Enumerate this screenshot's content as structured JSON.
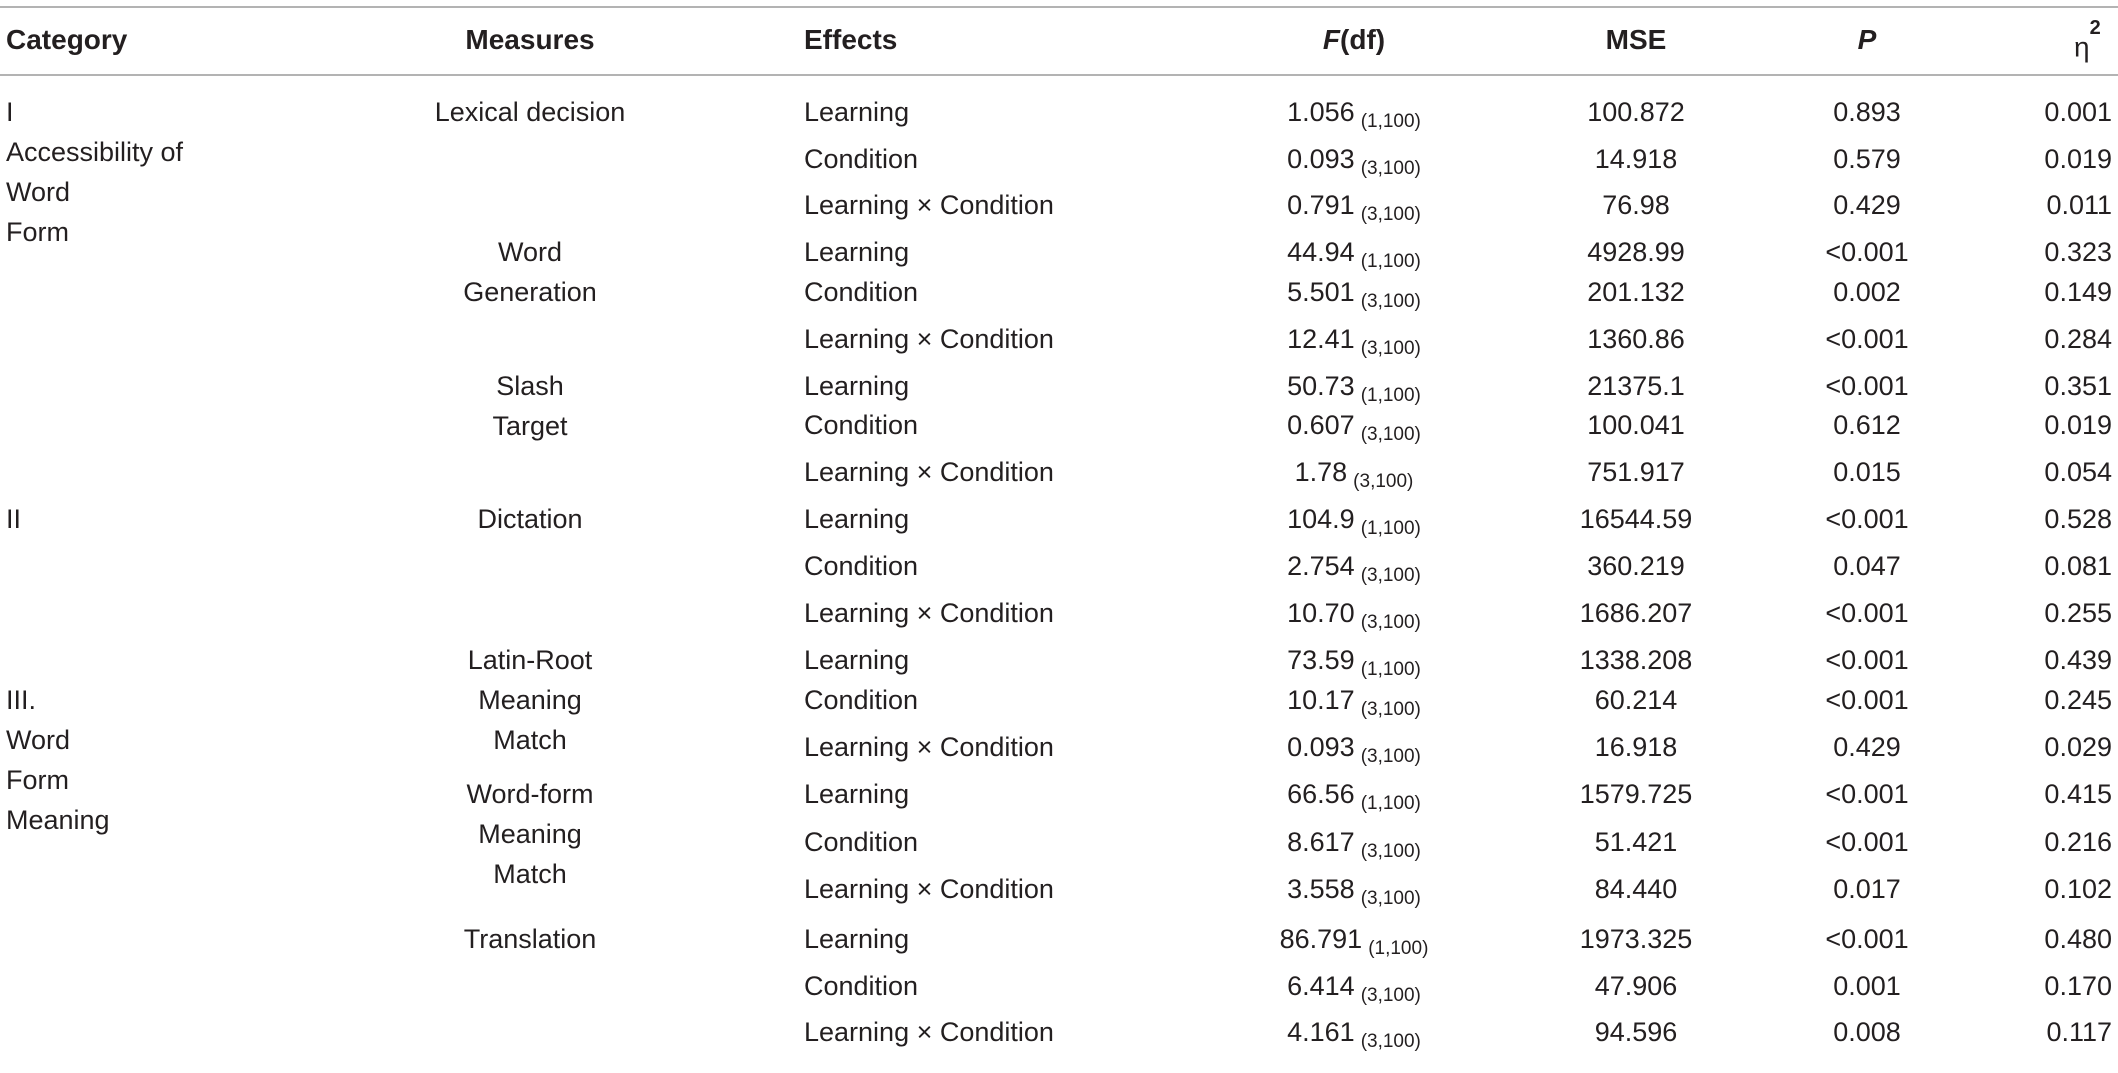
{
  "headers": {
    "category": "Category",
    "measures": "Measures",
    "effects": "Effects",
    "f_italic": "F",
    "f_rest": "(df)",
    "mse": "MSE",
    "p": "P",
    "eta": "η",
    "eta_sup": "2"
  },
  "categories": [
    {
      "lines": [
        "I",
        "Accessibility of",
        "Word",
        "Form"
      ]
    },
    {
      "lines": [
        "II"
      ]
    },
    {
      "lines": [
        "III.",
        "Word",
        "Form",
        "Meaning"
      ]
    }
  ],
  "measures": [
    {
      "lines": [
        "Lexical decision"
      ]
    },
    {
      "lines": [
        "Word",
        "Generation"
      ]
    },
    {
      "lines": [
        "Slash",
        "Target"
      ]
    },
    {
      "lines": [
        "Dictation"
      ]
    },
    {
      "lines": [
        "Latin-Root",
        "Meaning",
        "Match"
      ]
    },
    {
      "lines": [
        "Word-form",
        "Meaning",
        "Match"
      ]
    },
    {
      "lines": [
        "Translation"
      ]
    }
  ],
  "rows": [
    {
      "effect": "Learning",
      "f": "1.056",
      "df": "(1,100)",
      "mse": "100.872",
      "p": "0.893",
      "eta": "0.001"
    },
    {
      "effect": "Condition",
      "f": "0.093",
      "df": "(3,100)",
      "mse": "14.918",
      "p": "0.579",
      "eta": "0.019"
    },
    {
      "effect": "Learning × Condition",
      "f": "0.791",
      "df": "(3,100)",
      "mse": "76.98",
      "p": "0.429",
      "eta": "0.011"
    },
    {
      "effect": "Learning",
      "f": "44.94",
      "df": "(1,100)",
      "mse": "4928.99",
      "p": "<0.001",
      "eta": "0.323"
    },
    {
      "effect": "Condition",
      "f": "5.501",
      "df": "(3,100)",
      "mse": "201.132",
      "p": "0.002",
      "eta": "0.149"
    },
    {
      "effect": "Learning × Condition",
      "f": "12.41",
      "df": "(3,100)",
      "mse": "1360.86",
      "p": "<0.001",
      "eta": "0.284"
    },
    {
      "effect": "Learning",
      "f": "50.73",
      "df": "(1,100)",
      "mse": "21375.1",
      "p": "<0.001",
      "eta": "0.351"
    },
    {
      "effect": "Condition",
      "f": "0.607",
      "df": "(3,100)",
      "mse": "100.041",
      "p": "0.612",
      "eta": "0.019"
    },
    {
      "effect": "Learning × Condition",
      "f": "1.78",
      "df": "(3,100)",
      "mse": "751.917",
      "p": "0.015",
      "eta": "0.054"
    },
    {
      "effect": "Learning",
      "f": "104.9",
      "df": "(1,100)",
      "mse": "16544.59",
      "p": "<0.001",
      "eta": "0.528"
    },
    {
      "effect": "Condition",
      "f": "2.754",
      "df": "(3,100)",
      "mse": "360.219",
      "p": "0.047",
      "eta": "0.081"
    },
    {
      "effect": "Learning × Condition",
      "f": "10.70",
      "df": "(3,100)",
      "mse": "1686.207",
      "p": "<0.001",
      "eta": "0.255"
    },
    {
      "effect": "Learning",
      "f": "73.59",
      "df": "(1,100)",
      "mse": "1338.208",
      "p": "<0.001",
      "eta": "0.439"
    },
    {
      "effect": "Condition",
      "f": "10.17",
      "df": "(3,100)",
      "mse": "60.214",
      "p": "<0.001",
      "eta": "0.245"
    },
    {
      "effect": "Learning × Condition",
      "f": "0.093",
      "df": "(3,100)",
      "mse": "16.918",
      "p": "0.429",
      "eta": "0.029"
    },
    {
      "effect": "Learning",
      "f": "66.56",
      "df": "(1,100)",
      "mse": "1579.725",
      "p": "<0.001",
      "eta": "0.415"
    },
    {
      "effect": "Condition",
      "f": "8.617",
      "df": "(3,100)",
      "mse": "51.421",
      "p": "<0.001",
      "eta": "0.216"
    },
    {
      "effect": "Learning × Condition",
      "f": "3.558",
      "df": "(3,100)",
      "mse": "84.440",
      "p": "0.017",
      "eta": "0.102"
    },
    {
      "effect": "Learning",
      "f": "86.791",
      "df": "(1,100)",
      "mse": "1973.325",
      "p": "<0.001",
      "eta": "0.480"
    },
    {
      "effect": "Condition",
      "f": "6.414",
      "df": "(3,100)",
      "mse": "47.906",
      "p": "0.001",
      "eta": "0.170"
    },
    {
      "effect": "Learning × Condition",
      "f": "4.161",
      "df": "(3,100)",
      "mse": "94.596",
      "p": "0.008",
      "eta": "0.117"
    }
  ]
}
